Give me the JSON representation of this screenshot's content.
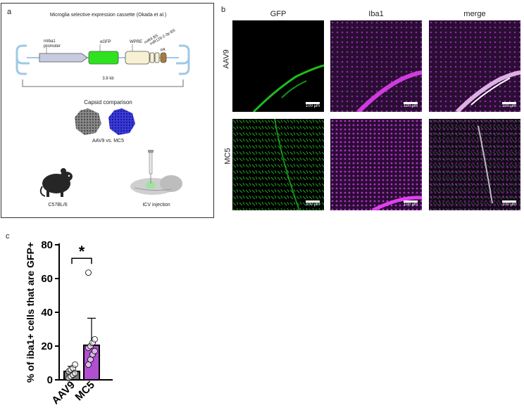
{
  "panel_a": {
    "letter": "a",
    "title": "Microglia selective expression cassette (Okada et al.)",
    "labels": {
      "mIba1_line1": "mIba1",
      "mIba1_line2": "promoter",
      "egfp": "eGFP",
      "wpre": "WPRE",
      "mir9": "miR9 BS",
      "mir129": "miR129-2-3p BS",
      "pa": "pA"
    },
    "size_label": "3.8 kb",
    "capsid_title": "Capsid comparison",
    "capsid_label": "AAV9 vs. MC5",
    "mouse_label": "C57BL/6",
    "injection_label": "ICV injection"
  },
  "panel_b": {
    "letter": "b",
    "columns": [
      "GFP",
      "Iba1",
      "merge"
    ],
    "rows": [
      "AAV9",
      "MC5"
    ],
    "scale_bar": "100 µm"
  },
  "panel_c": {
    "letter": "c",
    "significance": "*"
  },
  "chart_data": {
    "type": "bar",
    "categories": [
      "AAV9",
      "MC5"
    ],
    "values": [
      5,
      20.5
    ],
    "error": [
      3,
      16
    ],
    "points": {
      "AAV9": [
        1,
        2,
        3,
        4,
        5,
        6,
        7,
        9
      ],
      "MC5": [
        9,
        12,
        15,
        17,
        19,
        20,
        22,
        24,
        63.5
      ]
    },
    "ylabel": "% of iba1+ cells that are GFP+",
    "ylim": [
      0,
      80
    ],
    "yticks": [
      0,
      20,
      40,
      60,
      80
    ],
    "colors": {
      "AAV9": "#7a7a7a",
      "MC5": "#b04fd0"
    }
  }
}
